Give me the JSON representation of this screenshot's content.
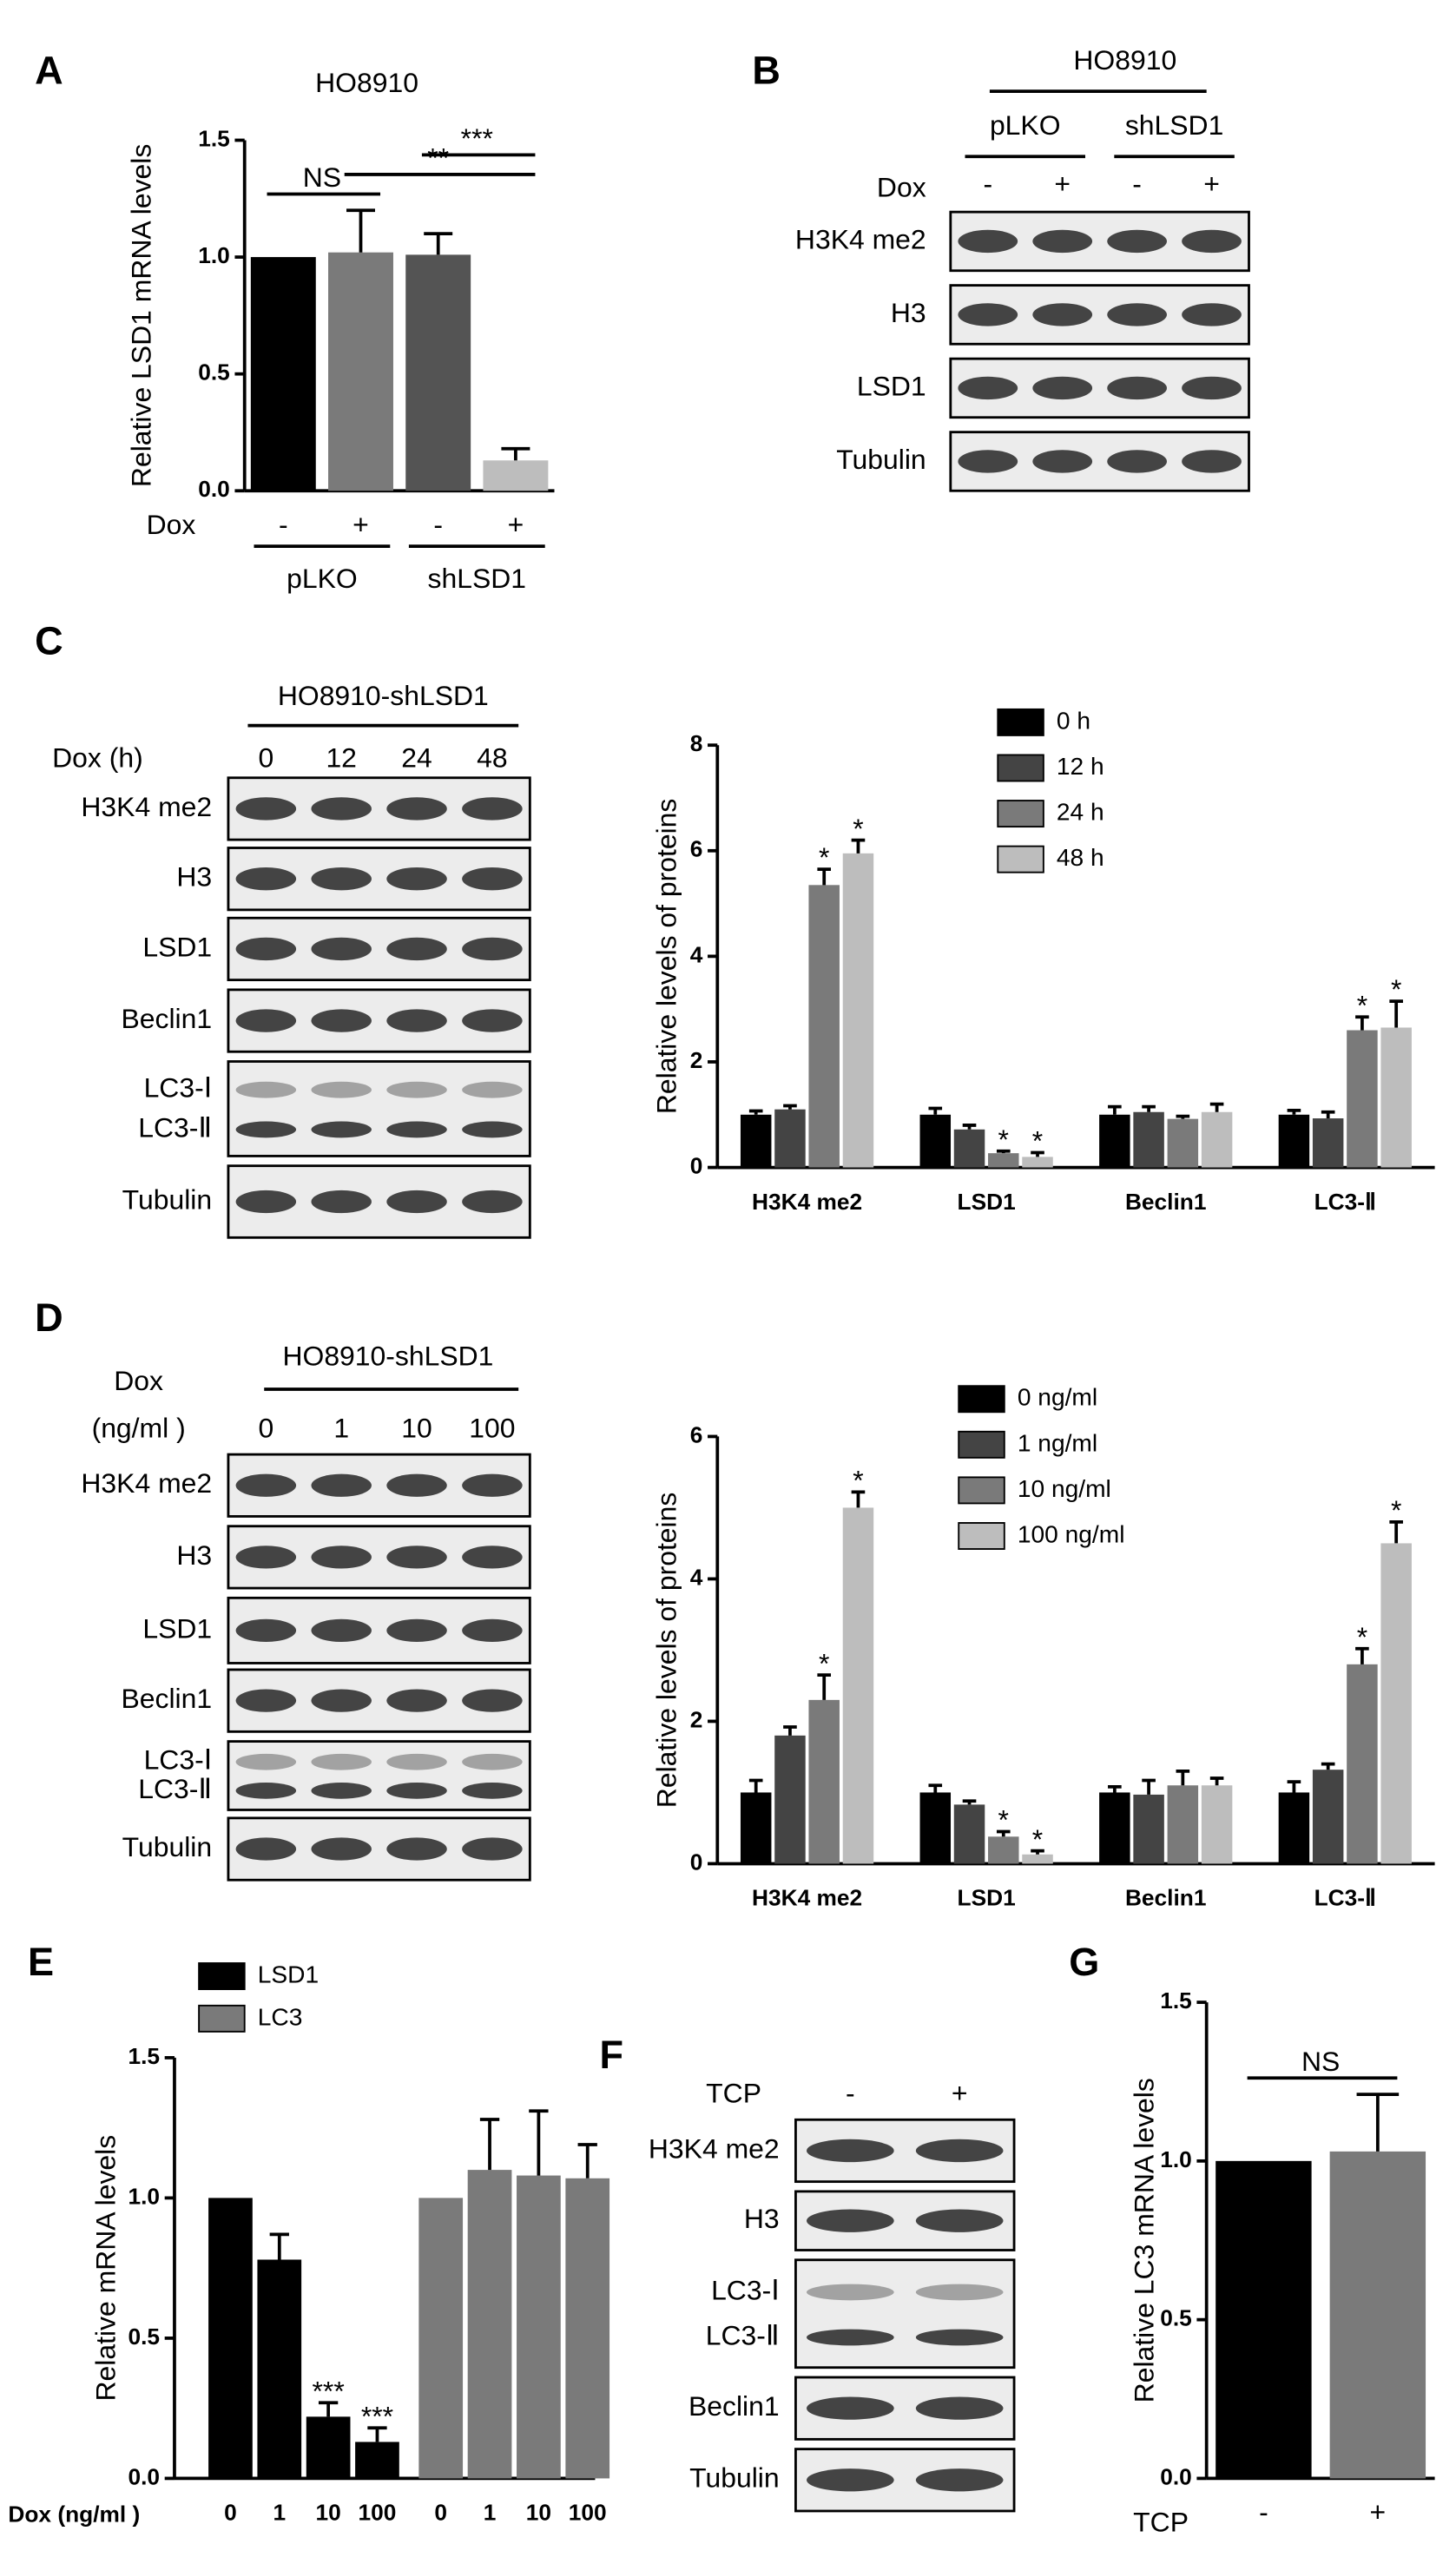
{
  "panel_labels": [
    "A",
    "B",
    "C",
    "D",
    "E",
    "F",
    "G"
  ],
  "chart_data": [
    {
      "type": "bar",
      "title": "HO8910",
      "y_label": "Relative LSD1 mRNA levels",
      "x_label": "Dox",
      "categories": [
        "-",
        "+",
        "-",
        "+"
      ],
      "groups": [
        "pLKO",
        "shLSD1"
      ],
      "values": [
        1.0,
        1.02,
        1.01,
        0.13
      ],
      "errors": [
        null,
        0.18,
        0.09,
        0.05
      ],
      "colors": [
        "#000000",
        "#7a7a7a",
        "#545454",
        "#bdbdbd"
      ],
      "ylim": [
        0,
        1.5
      ],
      "yticks": [
        {
          "value": 0,
          "label": "0.0"
        },
        0.5,
        {
          "value": 1,
          "label": "1.0"
        },
        1.5
      ],
      "annotations": [
        {
          "text": "NS",
          "from": 0,
          "to": 1
        },
        {
          "text": "**",
          "from": 1,
          "to": 3
        },
        {
          "text": "***",
          "from": 2,
          "to": 3
        }
      ]
    },
    {
      "type": "bar",
      "group_by": "category",
      "y_label": "Relative levels of proteins",
      "categories": [
        "H3K4 me2",
        "LSD1",
        "Beclin1",
        "LC3-Ⅱ"
      ],
      "series": [
        {
          "name": "0 h",
          "color": "#000000",
          "values": [
            1.0,
            1.0,
            1.0,
            1.0
          ],
          "errors": [
            0.07,
            0.12,
            0.15,
            0.08
          ]
        },
        {
          "name": "12 h",
          "color": "#444444",
          "values": [
            1.1,
            0.72,
            1.05,
            0.93
          ],
          "errors": [
            0.07,
            0.08,
            0.1,
            0.12
          ]
        },
        {
          "name": "24 h",
          "color": "#7a7a7a",
          "values": [
            5.35,
            0.27,
            0.92,
            2.6
          ],
          "errors": [
            0.3,
            0.04,
            0.05,
            0.25
          ]
        },
        {
          "name": "48 h",
          "color": "#bdbdbd",
          "values": [
            5.95,
            0.2,
            1.05,
            2.65
          ],
          "errors": [
            0.25,
            0.08,
            0.15,
            0.5
          ]
        }
      ],
      "ylim": [
        0,
        8
      ],
      "yticks": [
        0,
        2,
        4,
        6,
        8
      ],
      "annotations": [
        {
          "text": "*",
          "series": 2,
          "category": 0
        },
        {
          "text": "*",
          "series": 3,
          "category": 0
        },
        {
          "text": "*",
          "series": 2,
          "category": 1
        },
        {
          "text": "*",
          "series": 3,
          "category": 1
        },
        {
          "text": "*",
          "series": 2,
          "category": 3
        },
        {
          "text": "*",
          "series": 3,
          "category": 3
        }
      ]
    },
    {
      "type": "bar",
      "group_by": "category",
      "y_label": "Relative levels of proteins",
      "categories": [
        "H3K4 me2",
        "LSD1",
        "Beclin1",
        "LC3-Ⅱ"
      ],
      "series": [
        {
          "name": "0 ng/ml",
          "color": "#000000",
          "values": [
            1.0,
            1.0,
            1.0,
            1.0
          ],
          "errors": [
            0.17,
            0.1,
            0.08,
            0.15
          ]
        },
        {
          "name": "1 ng/ml",
          "color": "#444444",
          "values": [
            1.8,
            0.83,
            0.97,
            1.32
          ],
          "errors": [
            0.12,
            0.05,
            0.2,
            0.08
          ]
        },
        {
          "name": "10 ng/ml",
          "color": "#7a7a7a",
          "values": [
            2.3,
            0.38,
            1.1,
            2.8
          ],
          "errors": [
            0.35,
            0.07,
            0.2,
            0.22
          ]
        },
        {
          "name": "100 ng/ml",
          "color": "#bdbdbd",
          "values": [
            5.0,
            0.13,
            1.1,
            4.5
          ],
          "errors": [
            0.22,
            0.05,
            0.1,
            0.3
          ]
        }
      ],
      "ylim": [
        0,
        6
      ],
      "yticks": [
        0,
        2,
        4,
        6
      ],
      "annotations": [
        {
          "text": "*",
          "series": 2,
          "category": 0
        },
        {
          "text": "*",
          "series": 3,
          "category": 0
        },
        {
          "text": "*",
          "series": 2,
          "category": 1
        },
        {
          "text": "*",
          "series": 3,
          "category": 1
        },
        {
          "text": "*",
          "series": 2,
          "category": 3
        },
        {
          "text": "*",
          "series": 3,
          "category": 3
        }
      ]
    },
    {
      "type": "bar",
      "group_by": "series",
      "y_label": "Relative mRNA levels",
      "x_label": "Dox (ng/ml )",
      "categories": [
        "0",
        "1",
        "10",
        "100"
      ],
      "series": [
        {
          "name": "LSD1",
          "color": "#000000",
          "values": [
            1.0,
            0.78,
            0.22,
            0.13
          ],
          "errors": [
            null,
            0.09,
            0.05,
            0.05
          ]
        },
        {
          "name": "LC3",
          "color": "#7a7a7a",
          "values": [
            1.0,
            1.1,
            1.08,
            1.07
          ],
          "errors": [
            null,
            0.18,
            0.23,
            0.12
          ]
        }
      ],
      "ylim": [
        0,
        1.5
      ],
      "yticks": [
        {
          "value": 0,
          "label": "0.0"
        },
        0.5,
        {
          "value": 1,
          "label": "1.0"
        },
        1.5
      ],
      "annotations": [
        {
          "text": "***",
          "series": 0,
          "category": 2
        },
        {
          "text": "***",
          "series": 0,
          "category": 3
        }
      ]
    },
    {
      "type": "bar",
      "y_label": "Relative LC3 mRNA levels",
      "x_label": "TCP",
      "categories": [
        "-",
        "+"
      ],
      "values": [
        1.0,
        1.03
      ],
      "errors": [
        null,
        0.18
      ],
      "colors": [
        "#000000",
        "#7a7a7a"
      ],
      "ylim": [
        0,
        1.5
      ],
      "yticks": [
        {
          "value": 0,
          "label": "0.0"
        },
        0.5,
        {
          "value": 1,
          "label": "1.0"
        },
        1.5
      ],
      "annotations": [
        {
          "text": "NS",
          "from": 0,
          "to": 1
        }
      ]
    }
  ],
  "blots": [
    {
      "title": "HO8910",
      "condition": [
        "Dox"
      ],
      "groups": [
        "pLKO",
        "shLSD1"
      ],
      "lanes": [
        "-",
        "+",
        "-",
        "+"
      ],
      "rows": [
        [
          "H3K4 me2"
        ],
        [
          "H3"
        ],
        [
          "LSD1"
        ],
        [
          "Tubulin"
        ]
      ]
    },
    {
      "title": "HO8910-shLSD1",
      "condition": [
        "Dox (h)"
      ],
      "lanes": [
        "0",
        "12",
        "24",
        "48"
      ],
      "rows": [
        [
          "H3K4 me2"
        ],
        [
          "H3"
        ],
        [
          "LSD1"
        ],
        [
          "Beclin1"
        ],
        [
          "LC3-Ⅰ",
          "LC3-Ⅱ"
        ],
        [
          "Tubulin"
        ]
      ]
    },
    {
      "title": "HO8910-shLSD1",
      "condition": [
        "Dox",
        "(ng/ml )"
      ],
      "lanes": [
        "0",
        "1",
        "10",
        "100"
      ],
      "rows": [
        [
          "H3K4 me2"
        ],
        [
          "H3"
        ],
        [
          "LSD1"
        ],
        [
          "Beclin1"
        ],
        [
          "LC3-Ⅰ",
          "LC3-Ⅱ"
        ],
        [
          "Tubulin"
        ]
      ]
    },
    {
      "condition": [
        "TCP"
      ],
      "lanes": [
        "-",
        "+"
      ],
      "rows": [
        [
          "H3K4 me2"
        ],
        [
          "H3"
        ],
        [
          "LC3-Ⅰ",
          "LC3-Ⅱ"
        ],
        [
          "Beclin1"
        ],
        [
          "Tubulin"
        ]
      ]
    }
  ]
}
